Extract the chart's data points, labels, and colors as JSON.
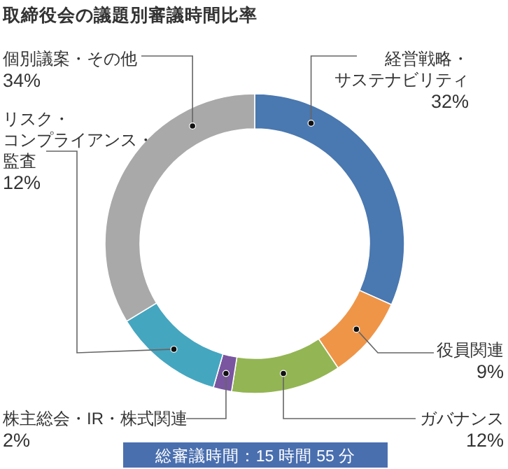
{
  "chart_data": {
    "type": "donut",
    "title": "取締役会の議題別審議時間比率",
    "categories": [
      "経営戦略・サステナビリティ",
      "役員関連",
      "ガバナンス",
      "株主総会・IR・株式関連",
      "リスク・コンプライアンス・監査",
      "個別議案・その他"
    ],
    "values": [
      32,
      9,
      12,
      2,
      12,
      34
    ],
    "value_labels": [
      "32%",
      "9%",
      "12%",
      "2%",
      "12%",
      "34%"
    ],
    "colors": [
      "#4a78b0",
      "#ef9548",
      "#93b553",
      "#7a55a0",
      "#45a6c0",
      "#a9a9a9"
    ],
    "annotations": [
      "総審議時間：15 時間 55 分"
    ]
  }
}
